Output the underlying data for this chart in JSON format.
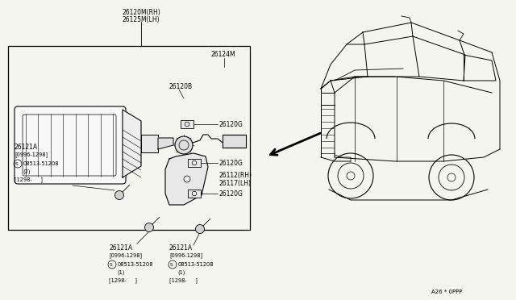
{
  "bg_color": "#f5f5f0",
  "line_color": "#000000",
  "lw": 0.7,
  "fs": 5.5,
  "fs_sm": 4.8,
  "labels": {
    "top1": "26120M(RH)",
    "top2": "26125M(LH)",
    "l26124M": "26124M",
    "l26120B": "26120B",
    "l26120G_1": "26120G",
    "l26120G_2": "26120G",
    "l26120G_3": "26120G",
    "l26121A_1": "26121A",
    "l26121A_2": "26121A",
    "l26121A_3": "26121A",
    "l26112": "26112(RH)",
    "l26117": "26117(LH)",
    "sub1a": "[0996-1298]",
    "sub1b": "08513-51208",
    "sub1c": "(2)",
    "sub1d": "[1298-     ]",
    "sub2a": "[0996-1298]",
    "sub2b": "08513-51208",
    "sub2c": "(1)",
    "sub2d": "[1298-     ]",
    "sub3a": "[0996-1298]",
    "sub3b": "08513-51208",
    "sub3c": "(1)",
    "sub3d": "[1298-     ]",
    "page_code": "A26 * 0PPP"
  }
}
